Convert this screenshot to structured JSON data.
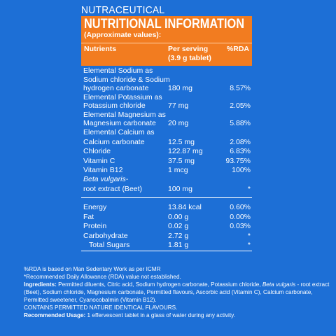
{
  "header": {
    "brand": "NUTRACEUTICAL",
    "title": "NUTRITIONAL INFORMATION",
    "subtitle": "(Approximate values):"
  },
  "columns": {
    "nutrients": "Nutrients",
    "per_serving_1": "Per serving",
    "per_serving_2": "(3.9 g tablet)",
    "rda": "%RDA"
  },
  "rows": [
    {
      "name_lines": [
        "Elemental Sodium as",
        "Sodium chloride & Sodium",
        "hydrogen carbonate"
      ],
      "amount": "180 mg",
      "rda": "8.57%"
    },
    {
      "name_lines": [
        "Elemental Potassium as",
        "Potassium chloride"
      ],
      "amount": "77 mg",
      "rda": "2.05%"
    },
    {
      "name_lines": [
        "Elemental Magnesium as",
        "Magnesium carbonate"
      ],
      "amount": "20 mg",
      "rda": "5.88%"
    },
    {
      "name_lines": [
        "Elemental Calcium as",
        "Calcium carbonate"
      ],
      "amount": "12.5 mg",
      "rda": "2.08%"
    },
    {
      "name_lines": [
        "Chloride"
      ],
      "amount": "122.87 mg",
      "rda": "6.83%"
    },
    {
      "name_lines": [
        "Vitamin C"
      ],
      "amount": "37.5 mg",
      "rda": "93.75%"
    },
    {
      "name_lines": [
        "Vitamin B12"
      ],
      "amount": "1 mcg",
      "rda": "100%"
    },
    {
      "name_lines": [
        "Beta vulgaris-",
        "root extract (Beet)"
      ],
      "amount": "100 mg",
      "rda": "*"
    }
  ],
  "energy_rows": [
    {
      "name": "Energy",
      "amount": "13.84 kcal",
      "rda": "0.60%"
    },
    {
      "name": "Fat",
      "amount": "0.00 g",
      "rda": "0.00%"
    },
    {
      "name": "Protein",
      "amount": "0.02 g",
      "rda": "0.03%"
    },
    {
      "name": "Carbohydrate",
      "amount": "2.72 g",
      "rda": "*"
    },
    {
      "name": "Total Sugars",
      "amount": "1.81 g",
      "rda": "*"
    }
  ],
  "footnotes": {
    "rda_basis": "%RDA is based on Man Sedentary Work as per ICMR",
    "not_established": "*Recommended Daily Allowance (RDA) value not established.",
    "ingredients_label": "Ingredients:",
    "ingredients_part1": " Permitted diluents, Citric acid, Sodium hydrogen carbonate, Potassium chloride, ",
    "ingredients_italic": "Beta vulgaris",
    "ingredients_part2": " - root extract (Beet), Sodium chloride, Magnesium carbonate, Permitted flavours, Ascorbic acid (Vitamin C), Calcium carbonate, Permitted sweetener, Cyanocobalmin (Vitamin B12).",
    "flavours": "CONTAINS PERMITTED NATURE IDENTICAL FLAVOURS.",
    "usage_label": "Recommended Usage:",
    "usage_text": " 1 effervescent tablet in a glass of water during any activity."
  }
}
